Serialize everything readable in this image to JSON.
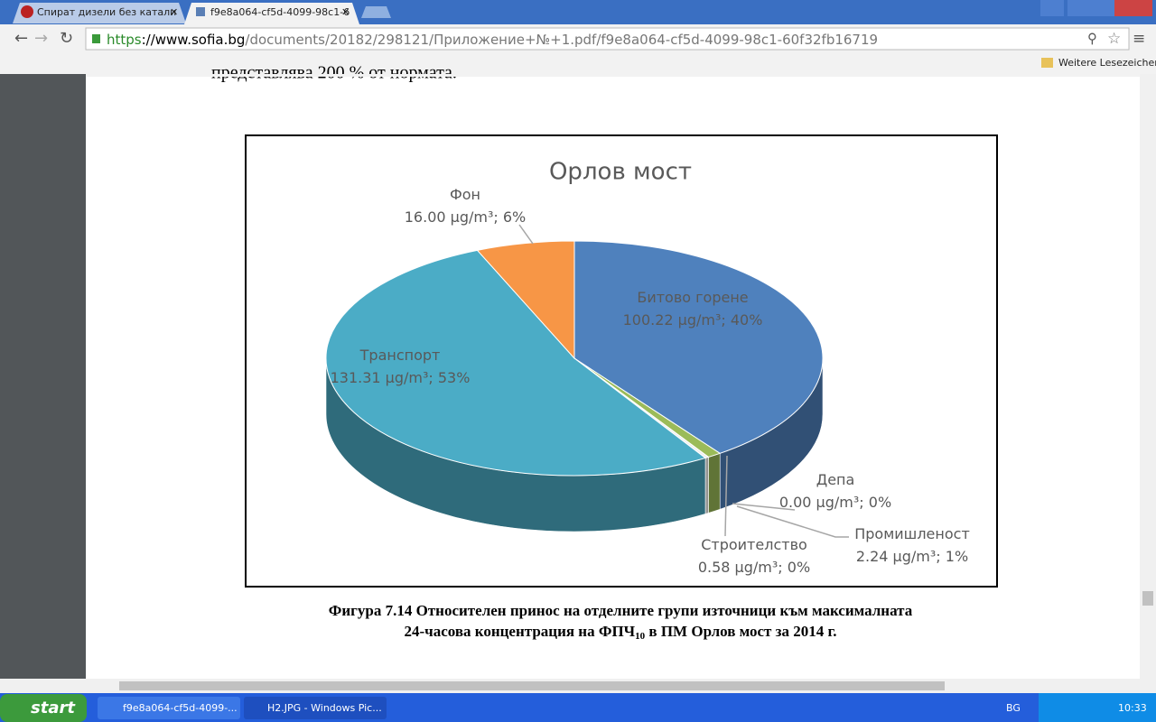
{
  "browser": {
    "tabs": [
      "Спират дизели без катали",
      "f9e8a064-cf5d-4099-98c1-6"
    ],
    "url_scheme": "https",
    "url_host": "://www.sofia.bg",
    "url_path": "/documents/20182/298121/Приложение+№+1.pdf/f9e8a064-cf5d-4099-98c1-60f32fb16719",
    "bookmarks_folder": "Weitere Lesezeichen"
  },
  "document": {
    "top_text": "представлява 200 % от нормата.",
    "caption": {
      "line1": "Фигура 7.14 Относителен принос на отделните групи източници към максималната",
      "line2_start": "24-часова концентрация на ФПЧ",
      "line2_sub": "10",
      "line2_end": " в ПМ Орлов мост за 2014 г."
    }
  },
  "chart_data": {
    "type": "pie",
    "title": "Орлов мост",
    "categories": [
      "Битово горене",
      "Промишленост",
      "Строителство",
      "Депа",
      "Транспорт",
      "Фон"
    ],
    "values": [
      100.22,
      2.24,
      0.58,
      0,
      131.31,
      16
    ],
    "value_labels": [
      "100.22 µg/m³; 40%",
      "2.24 µg/m³; 1%",
      "0.58 µg/m³; 0%",
      "0.00 µg/m³; 0%",
      "131.31 µg/m³; 53%",
      "16.00 µg/m³; 6%"
    ],
    "colors": [
      "#4f81bd",
      "#9bbb59",
      "#eeeeee",
      "#8c8c8c",
      "#4bacc6",
      "#f79646"
    ]
  },
  "taskbar": {
    "start": "start",
    "tasks": [
      "f9e8a064-cf5d-4099-...",
      "H2.JPG - Windows Pic..."
    ],
    "language": "BG",
    "clock": "10:33"
  }
}
